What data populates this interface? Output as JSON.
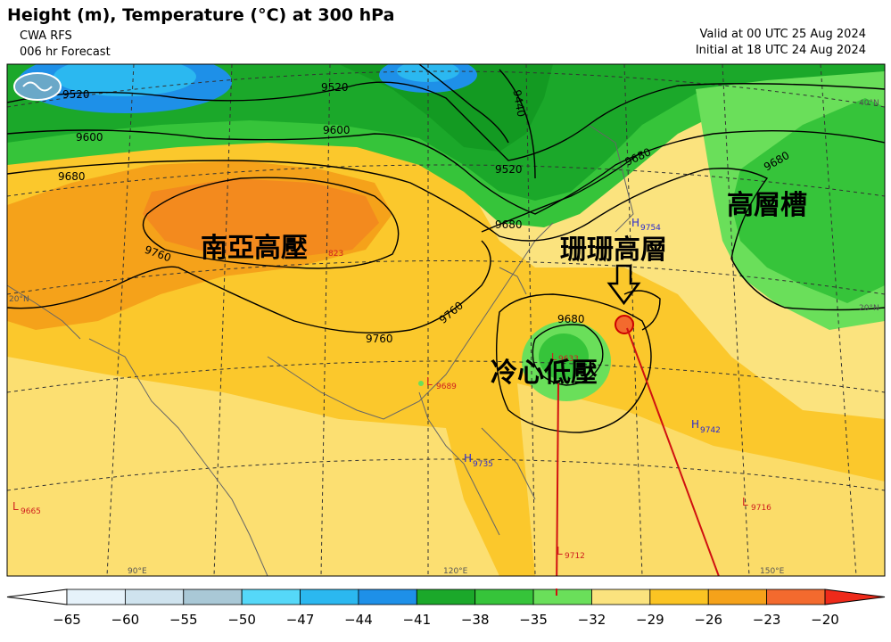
{
  "header": {
    "title": "Height (m), Temperature (°C) at 300 hPa",
    "model": "CWA RFS",
    "forecast": "006 hr Forecast",
    "valid": "Valid at 00 UTC 25 Aug 2024",
    "initial": "Initial at 18 UTC 24 Aug 2024"
  },
  "annotations": {
    "south_asia_high": "南亞高壓",
    "upper_trough": "高層槽",
    "coral_high": "珊珊高層",
    "cold_low": "冷心低壓"
  },
  "contours": [
    "9520",
    "9600",
    "9680",
    "9440",
    "9520",
    "9600",
    "9680",
    "9520",
    "9680",
    "9680",
    "9760",
    "9760",
    "9760",
    "9680"
  ],
  "pressure_centers": [
    {
      "type": "H",
      "value": "9754",
      "color": "#2b2bd0"
    },
    {
      "type": "L",
      "value": "9633",
      "color": "#d02020"
    },
    {
      "type": "L",
      "value": "9689",
      "color": "#d02020"
    },
    {
      "type": "H",
      "value": "9742",
      "color": "#2b2bd0"
    },
    {
      "type": "H",
      "value": "9735",
      "color": "#2b2bd0"
    },
    {
      "type": "L",
      "value": "9665",
      "color": "#d02020"
    },
    {
      "type": "L",
      "value": "9716",
      "color": "#d02020"
    },
    {
      "type": "L",
      "value": "9712",
      "color": "#d02020"
    },
    {
      "type": "",
      "value": "823",
      "color": "#d02020"
    }
  ],
  "geo_labels": [
    "20°N",
    "20°N",
    "40°N",
    "90°E",
    "120°E",
    "150°E"
  ],
  "colorbar": {
    "ticks": [
      "−65",
      "−60",
      "−55",
      "−50",
      "−47",
      "−44",
      "−41",
      "−38",
      "−35",
      "−32",
      "−29",
      "−26",
      "−23",
      "−20"
    ],
    "colors": [
      "#ffffff",
      "#e6f2fa",
      "#cfe3ee",
      "#a9c8d6",
      "#55d8f8",
      "#2bb8f0",
      "#1e90e8",
      "#1ba82a",
      "#36c43a",
      "#6adf5a",
      "#fbe37e",
      "#fbc423",
      "#f5a21a",
      "#f36a2e",
      "#ee2a1a"
    ]
  }
}
